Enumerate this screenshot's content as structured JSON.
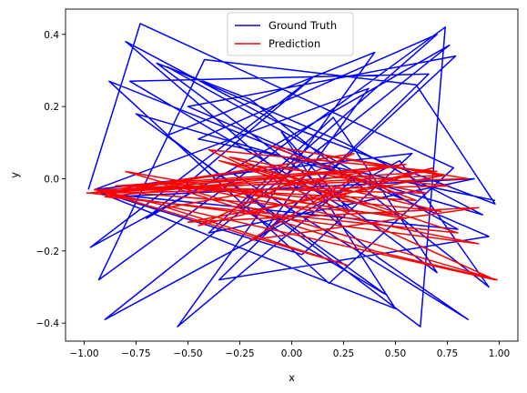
{
  "chart_data": {
    "type": "line",
    "title": "",
    "xlabel": "x",
    "ylabel": "y",
    "xlim": [
      -1.09,
      1.09
    ],
    "ylim": [
      -0.45,
      0.47
    ],
    "x_ticks": [
      -1.0,
      -0.75,
      -0.5,
      -0.25,
      0.0,
      0.25,
      0.5,
      0.75,
      1.0
    ],
    "x_tick_labels": [
      "−1.00",
      "−0.75",
      "−0.50",
      "−0.25",
      "0.00",
      "0.25",
      "0.50",
      "0.75",
      "1.00"
    ],
    "y_ticks": [
      -0.4,
      -0.2,
      0.0,
      0.2,
      0.4
    ],
    "y_tick_labels": [
      "−0.4",
      "−0.2",
      "0.0",
      "0.2",
      "0.4"
    ],
    "grid": false,
    "legend_position": "upper center",
    "series": [
      {
        "name": "Ground Truth",
        "color": "#0000ff",
        "x": [
          -0.98,
          -0.73,
          0.78,
          0.18,
          -0.88,
          0.3,
          -0.55,
          0.4,
          -0.6,
          0.62,
          0.74,
          -0.93,
          -0.42,
          0.6,
          0.98,
          -0.08,
          -0.8,
          0.42,
          0.85,
          -0.3,
          -0.97,
          0.1,
          -0.7,
          0.76,
          -0.9,
          0.52,
          0.95,
          -0.2,
          -0.65,
          0.7,
          0.2,
          -0.4,
          0.88,
          -0.85,
          0.05,
          0.58,
          -0.95,
          0.37,
          -0.15,
          0.79,
          -0.5,
          0.95,
          -0.35,
          0.66,
          -0.78,
          0.28,
          -0.05,
          0.5,
          -0.92,
          0.8,
          -0.6,
          0.25,
          0.92,
          -0.75,
          0.45,
          -0.25,
          0.7,
          -0.45,
          0.98
        ],
        "y": [
          -0.03,
          0.43,
          0.03,
          -0.29,
          0.27,
          0.0,
          -0.41,
          0.35,
          0.12,
          -0.41,
          0.42,
          -0.28,
          0.33,
          0.26,
          -0.07,
          0.16,
          0.38,
          -0.22,
          -0.39,
          0.02,
          -0.19,
          0.28,
          -0.11,
          0.37,
          -0.39,
          0.05,
          -0.3,
          0.22,
          0.32,
          -0.26,
          0.17,
          -0.15,
          0.0,
          -0.05,
          -0.21,
          0.07,
          -0.03,
          0.25,
          -0.16,
          0.34,
          0.2,
          -0.16,
          -0.28,
          0.29,
          0.27,
          -0.09,
          0.13,
          -0.36,
          -0.04,
          -0.14,
          0.31,
          0.1,
          -0.1,
          0.18,
          -0.32,
          -0.08,
          0.4,
          0.11,
          -0.06
        ]
      },
      {
        "name": "Prediction",
        "color": "#ff0000",
        "x": [
          -0.99,
          0.7,
          -0.4,
          0.98,
          -0.95,
          0.27,
          -0.6,
          0.55,
          -0.9,
          0.8,
          -0.3,
          0.65,
          -0.85,
          0.45,
          -0.98,
          0.74,
          -0.5,
          0.9,
          -0.2,
          0.35,
          -0.75,
          0.6,
          -0.1,
          0.85,
          -0.95,
          0.5,
          -0.35,
          0.72,
          -0.65,
          0.4,
          0.99,
          -0.8,
          0.1,
          0.68,
          -0.45,
          0.3,
          -0.9,
          0.76,
          -0.25,
          0.55,
          -0.6,
          0.9,
          -0.97,
          0.2,
          0.72
        ],
        "y": [
          -0.04,
          0.02,
          0.08,
          -0.28,
          -0.03,
          -0.24,
          -0.08,
          0.04,
          -0.05,
          -0.15,
          0.06,
          -0.04,
          -0.02,
          0.03,
          -0.04,
          0.01,
          -0.12,
          -0.08,
          -0.17,
          0.02,
          -0.02,
          -0.06,
          0.09,
          0.0,
          -0.03,
          -0.1,
          0.05,
          -0.09,
          -0.01,
          -0.2,
          -0.28,
          0.02,
          -0.07,
          0.03,
          -0.13,
          0.07,
          -0.04,
          -0.02,
          0.04,
          -0.11,
          -0.01,
          -0.18,
          -0.04,
          0.06,
          0.01
        ]
      }
    ]
  }
}
